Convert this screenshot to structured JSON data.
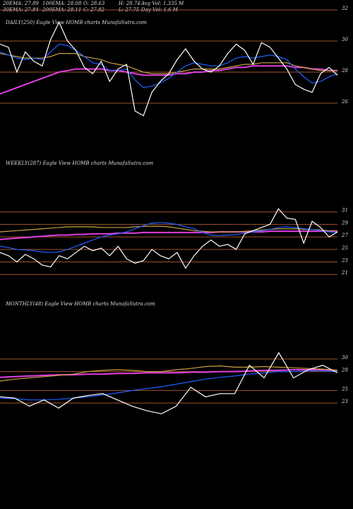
{
  "header": {
    "rows": [
      [
        "20EMA: 27.89",
        "100EMA: 28.08",
        "O: 28.63",
        "H: 28.74",
        "Avg Vol: 1.335 M"
      ],
      [
        "30EMA: 27.84",
        "200EMA: 28.11",
        "C: 27.82",
        "L: 27.75",
        "Day Vol: 1.6  M"
      ]
    ]
  },
  "chart_data": [
    {
      "type": "line",
      "title": "DAILY(250) Eagle  View  HOMB charts MunafaSutra.com",
      "ylim": [
        25,
        32
      ],
      "yticks": [
        32,
        30,
        28,
        26
      ],
      "grid": true,
      "grid_color": "#a0522d",
      "series": [
        {
          "color": "#e040e0",
          "values": [
            26.6,
            26.8,
            27.0,
            27.2,
            27.4,
            27.6,
            27.8,
            28.0,
            28.1,
            28.2,
            28.2,
            28.2,
            28.2,
            28.1,
            28.1,
            28.0,
            27.9,
            27.8,
            27.8,
            27.8,
            27.8,
            27.9,
            27.9,
            28.0,
            28.0,
            28.1,
            28.1,
            28.2,
            28.3,
            28.3,
            28.4,
            28.4,
            28.4,
            28.4,
            28.4,
            28.3,
            28.3,
            28.2,
            28.2,
            28.1,
            28.1
          ]
        },
        {
          "color": "#c8a040",
          "values": [
            29.2,
            29.1,
            29.0,
            28.9,
            28.9,
            28.9,
            29.0,
            29.2,
            29.2,
            29.2,
            29.0,
            28.9,
            28.8,
            28.6,
            28.5,
            28.4,
            28.2,
            28.0,
            27.9,
            27.9,
            27.9,
            28.0,
            28.1,
            28.2,
            28.2,
            28.2,
            28.2,
            28.3,
            28.4,
            28.5,
            28.5,
            28.6,
            28.6,
            28.6,
            28.6,
            28.4,
            28.3,
            28.2,
            28.1,
            28.1,
            28.1
          ]
        },
        {
          "color": "#2060ff",
          "values": [
            29.3,
            29.1,
            28.9,
            28.8,
            28.9,
            28.8,
            29.3,
            29.8,
            29.7,
            29.4,
            29.0,
            28.6,
            28.5,
            28.1,
            28.1,
            28.2,
            27.5,
            27.0,
            27.1,
            27.3,
            27.6,
            28.0,
            28.4,
            28.6,
            28.5,
            28.4,
            28.4,
            28.6,
            28.9,
            29.0,
            28.9,
            29.0,
            29.1,
            29.0,
            28.8,
            28.2,
            27.7,
            27.3,
            27.4,
            27.7,
            27.9
          ]
        },
        {
          "color": "#ffffff",
          "values": [
            29.8,
            29.6,
            28.0,
            29.3,
            28.7,
            28.4,
            30.1,
            31.2,
            30.0,
            29.4,
            28.3,
            27.9,
            28.7,
            27.4,
            28.2,
            28.5,
            25.5,
            25.2,
            26.7,
            27.4,
            27.9,
            28.8,
            29.5,
            28.7,
            28.2,
            28.0,
            28.4,
            29.2,
            29.8,
            29.4,
            28.5,
            29.9,
            29.6,
            28.9,
            28.2,
            27.2,
            26.9,
            26.7,
            27.9,
            28.3,
            27.8
          ]
        }
      ]
    },
    {
      "type": "line",
      "title": "WEEKLY(287) Eagle  View  HOMB charts MunafaSutra.com",
      "ylim": [
        19.5,
        33
      ],
      "yticks": [
        31,
        29,
        27,
        25,
        23,
        21
      ],
      "grid": true,
      "grid_color": "#a0522d",
      "series": [
        {
          "color": "#e040e0",
          "values": [
            26.6,
            26.7,
            26.8,
            26.9,
            27.0,
            27.1,
            27.2,
            27.3,
            27.3,
            27.4,
            27.4,
            27.5,
            27.5,
            27.5,
            27.6,
            27.6,
            27.6,
            27.7,
            27.7,
            27.7,
            27.7,
            27.7,
            27.7,
            27.7,
            27.7,
            27.7,
            27.8,
            27.8,
            27.8,
            27.8,
            27.8,
            27.8,
            27.9,
            27.9,
            27.9,
            27.9,
            27.9,
            27.9,
            27.9,
            27.9,
            27.8
          ]
        },
        {
          "color": "#c8a040",
          "values": [
            27.8,
            27.9,
            28.0,
            28.1,
            28.2,
            28.3,
            28.4,
            28.5,
            28.6,
            28.6,
            28.6,
            28.6,
            28.5,
            28.5,
            28.5,
            28.5,
            28.6,
            28.7,
            28.7,
            28.7,
            28.6,
            28.4,
            28.2,
            28.0,
            27.9,
            27.8,
            27.8,
            27.8,
            27.8,
            27.9,
            28.0,
            28.1,
            28.2,
            28.3,
            28.3,
            28.3,
            28.2,
            28.2,
            28.1,
            28.0,
            28.0
          ]
        },
        {
          "color": "#2060ff",
          "values": [
            25.5,
            25.3,
            25.0,
            24.9,
            24.8,
            24.6,
            24.5,
            24.6,
            25.0,
            25.5,
            26.0,
            26.5,
            27.0,
            27.3,
            27.5,
            27.8,
            28.3,
            28.8,
            29.2,
            29.3,
            29.2,
            29.0,
            28.6,
            28.3,
            27.7,
            27.3,
            27.2,
            27.3,
            27.4,
            27.6,
            27.8,
            28.0,
            28.2,
            28.5,
            28.6,
            28.5,
            28.3,
            28.2,
            28.0,
            27.8,
            27.7
          ]
        },
        {
          "color": "#ffffff",
          "values": [
            24.5,
            24.0,
            23.0,
            24.2,
            23.5,
            22.5,
            22.2,
            24.0,
            23.5,
            24.5,
            25.5,
            24.8,
            25.2,
            24.0,
            25.5,
            23.5,
            22.8,
            23.2,
            25.0,
            24.0,
            23.5,
            24.5,
            22.0,
            24.0,
            25.5,
            26.5,
            25.5,
            25.8,
            25.0,
            27.5,
            28.0,
            28.5,
            29.0,
            31.5,
            30.0,
            29.8,
            26.0,
            29.5,
            28.5,
            27.0,
            27.8
          ]
        }
      ]
    },
    {
      "type": "line",
      "title": "MONTHLY(48) Eagle  View  HOMB charts MunafaSutra.com",
      "ylim": [
        21,
        32
      ],
      "yticks": [
        30,
        28,
        25,
        23
      ],
      "grid": true,
      "grid_color": "#a0522d",
      "series": [
        {
          "color": "#e040e0",
          "values": [
            27.1,
            27.2,
            27.3,
            27.4,
            27.5,
            27.5,
            27.6,
            27.6,
            27.7,
            27.7,
            27.8,
            27.8,
            27.8,
            27.9,
            27.9,
            28.0,
            28.0,
            28.1,
            28.2,
            28.2,
            28.3,
            28.3,
            28.3,
            28.2
          ]
        },
        {
          "color": "#c8a040",
          "values": [
            26.5,
            26.8,
            27.0,
            27.2,
            27.4,
            27.6,
            28.0,
            28.2,
            28.3,
            28.2,
            28.0,
            28.0,
            28.3,
            28.5,
            28.8,
            28.9,
            28.7,
            28.7,
            28.8,
            28.7,
            28.6,
            28.5,
            28.4,
            28.2
          ]
        },
        {
          "color": "#2060ff",
          "values": [
            23.8,
            23.7,
            23.5,
            23.5,
            23.6,
            23.8,
            24.0,
            24.3,
            24.6,
            25.0,
            25.3,
            25.6,
            26.0,
            26.4,
            26.8,
            27.1,
            27.3,
            27.6,
            27.8,
            28.0,
            28.0,
            28.1,
            28.1,
            28.0
          ]
        },
        {
          "color": "#ffffff",
          "values": [
            24.0,
            23.8,
            22.5,
            23.5,
            22.2,
            23.8,
            24.2,
            24.5,
            23.5,
            22.5,
            21.8,
            21.3,
            22.5,
            25.5,
            24.0,
            24.5,
            24.5,
            29.0,
            27.0,
            31.0,
            27.0,
            28.3,
            29.0,
            27.8
          ]
        }
      ]
    }
  ]
}
